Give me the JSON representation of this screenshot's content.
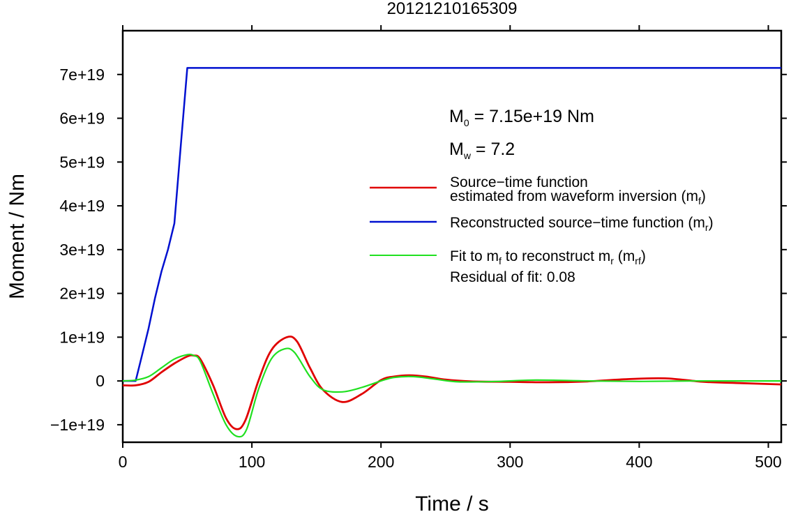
{
  "chart_data": {
    "type": "line",
    "title": "20121210165309",
    "xlabel": "Time / s",
    "ylabel": "Moment / Nm",
    "xlim": [
      0,
      510
    ],
    "ylim": [
      -1.4e+19,
      8e+19
    ],
    "x_ticks": [
      0,
      100,
      200,
      300,
      400,
      500
    ],
    "x_tick_labels": [
      "0",
      "100",
      "200",
      "300",
      "400",
      "500"
    ],
    "y_ticks": [
      -1e+19,
      0,
      1e+19,
      2e+19,
      3e+19,
      4e+19,
      5e+19,
      6e+19,
      7e+19
    ],
    "y_tick_labels": [
      "−1e+19",
      "0",
      "1e+19",
      "2e+19",
      "3e+19",
      "4e+19",
      "5e+19",
      "6e+19",
      "7e+19"
    ],
    "grid": false,
    "legend_placement": "right",
    "annotations": {
      "m0": {
        "symbol": "M",
        "sub": "0",
        "rest": " = 7.15e+19 Nm"
      },
      "mw": {
        "symbol": "M",
        "sub": "w",
        "rest": " = 7.2"
      },
      "residual": "Residual of fit: 0.08"
    },
    "legend": [
      {
        "color": "#e00000",
        "line1": "Source−time function",
        "line2_pre": "estimated from waveform inversion (m",
        "line2_sub": "f",
        "line2_post": ")"
      },
      {
        "color": "#0010d0",
        "line1_pre": "Reconstructed source−time function (m",
        "line1_sub": "r",
        "line1_post": ")"
      },
      {
        "color": "#20e020",
        "pre": "Fit to m",
        "sub1": "f",
        "mid": " to reconstruct m",
        "sub2": "r",
        "mid2": " (m",
        "sub3": "rf",
        "post": ")"
      }
    ],
    "series": [
      {
        "color": "#0010d0",
        "x": [
          0,
          10,
          15,
          20,
          25,
          30,
          35,
          40,
          45,
          50,
          510
        ],
        "y": [
          0,
          0,
          6e+18,
          1.2e+19,
          1.9e+19,
          2.5e+19,
          3e+19,
          3.6e+19,
          5.4e+19,
          7.15e+19,
          7.15e+19
        ]
      },
      {
        "color": "#e00000",
        "x": [
          0,
          10,
          20,
          30,
          40,
          50,
          55,
          60,
          70,
          80,
          88,
          95,
          105,
          115,
          127,
          135,
          145,
          155,
          170,
          185,
          200,
          210,
          222,
          235,
          250,
          270,
          300,
          330,
          360,
          390,
          420,
          450,
          480,
          510
        ],
        "y": [
          -1e+18,
          -1e+18,
          -2e+17,
          2e+18,
          4e+18,
          5.6e+18,
          5.8e+18,
          5e+18,
          -1e+18,
          -8.5e+18,
          -1.1e+19,
          -9e+18,
          0.0,
          7e+18,
          1e+19,
          9e+18,
          3e+18,
          -2e+18,
          -4.8e+18,
          -3e+18,
          2e+17,
          1e+18,
          1.3e+18,
          1e+18,
          3e+17,
          -1e+17,
          -2e+17,
          -3e+17,
          -1e+17,
          4e+17,
          6e+17,
          -2e+17,
          -5e+17,
          -8e+17
        ]
      },
      {
        "color": "#20e020",
        "x": [
          0,
          10,
          20,
          30,
          40,
          50,
          55,
          60,
          70,
          80,
          89,
          96,
          105,
          115,
          125,
          133,
          145,
          155,
          170,
          185,
          200,
          210,
          225,
          240,
          260,
          290,
          320,
          360,
          400,
          440,
          480,
          510
        ],
        "y": [
          0,
          2e+17,
          1e+18,
          3e+18,
          5e+18,
          6e+18,
          5.8e+18,
          4.5e+18,
          -3e+18,
          -1e+19,
          -1.27e+19,
          -1.1e+19,
          -2e+18,
          5e+18,
          7.3e+18,
          6.5e+18,
          1e+18,
          -2e+18,
          -2.5e+18,
          -1.5e+18,
          0.0,
          8e+17,
          1e+18,
          5e+17,
          -2e+17,
          -1e+17,
          2e+17,
          0.0,
          -1e+17,
          0.0,
          0.0,
          0.0
        ]
      }
    ]
  }
}
